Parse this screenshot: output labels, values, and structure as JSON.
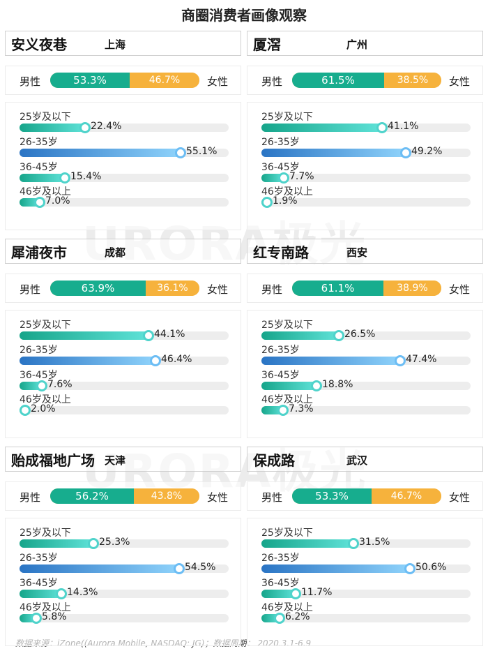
{
  "title": "商圈消费者画像观察",
  "watermark": "URORA极光",
  "gender_labels": {
    "male": "男性",
    "female": "女性"
  },
  "age_groups": [
    "25岁及以下",
    "26-35岁",
    "36-45岁",
    "46岁及以上"
  ],
  "footer": "数据来源：iZone((Aurora Mobile, NASDAQ: JG)；数据周期： 2020.3.1-6.9",
  "colors": {
    "male": "#17ad8e",
    "female": "#f6b23c",
    "age_teal": "#4fd3cb",
    "age_blue": "#4a9ae0"
  },
  "chart_data": [
    {
      "type": "bar",
      "mall": "安义夜巷",
      "city": "上海",
      "gender": {
        "male": "53.3%",
        "female": "46.7%",
        "male_value": 53.3,
        "female_value": 46.7
      },
      "ages": [
        {
          "label": "25岁及以下",
          "value": 22.4,
          "text": "22.4%"
        },
        {
          "label": "26-35岁",
          "value": 55.1,
          "text": "55.1%"
        },
        {
          "label": "36-45岁",
          "value": 15.4,
          "text": "15.4%"
        },
        {
          "label": "46岁及以上",
          "value": 7.0,
          "text": "7.0%"
        }
      ]
    },
    {
      "type": "bar",
      "mall": "厦滘",
      "city": "广州",
      "gender": {
        "male": "61.5%",
        "female": "38.5%",
        "male_value": 61.5,
        "female_value": 38.5
      },
      "ages": [
        {
          "label": "25岁及以下",
          "value": 41.1,
          "text": "41.1%"
        },
        {
          "label": "26-35岁",
          "value": 49.2,
          "text": "49.2%"
        },
        {
          "label": "36-45岁",
          "value": 7.7,
          "text": "7.7%"
        },
        {
          "label": "46岁及以上",
          "value": 1.9,
          "text": "1.9%"
        }
      ]
    },
    {
      "type": "bar",
      "mall": "犀浦夜市",
      "city": "成都",
      "gender": {
        "male": "63.9%",
        "female": "36.1%",
        "male_value": 63.9,
        "female_value": 36.1
      },
      "ages": [
        {
          "label": "25岁及以下",
          "value": 44.1,
          "text": "44.1%"
        },
        {
          "label": "26-35岁",
          "value": 46.4,
          "text": "46.4%"
        },
        {
          "label": "36-45岁",
          "value": 7.6,
          "text": "7.6%"
        },
        {
          "label": "46岁及以上",
          "value": 2.0,
          "text": "2.0%"
        }
      ]
    },
    {
      "type": "bar",
      "mall": "红专南路",
      "city": "西安",
      "gender": {
        "male": "61.1%",
        "female": "38.9%",
        "male_value": 61.1,
        "female_value": 38.9
      },
      "ages": [
        {
          "label": "25岁及以下",
          "value": 26.5,
          "text": "26.5%"
        },
        {
          "label": "26-35岁",
          "value": 47.4,
          "text": "47.4%"
        },
        {
          "label": "36-45岁",
          "value": 18.8,
          "text": "18.8%"
        },
        {
          "label": "46岁及以上",
          "value": 7.3,
          "text": "7.3%"
        }
      ]
    },
    {
      "type": "bar",
      "mall": "贻成福地广场",
      "city": "天津",
      "gender": {
        "male": "56.2%",
        "female": "43.8%",
        "male_value": 56.2,
        "female_value": 43.8
      },
      "ages": [
        {
          "label": "25岁及以下",
          "value": 25.3,
          "text": "25.3%"
        },
        {
          "label": "26-35岁",
          "value": 54.5,
          "text": "54.5%"
        },
        {
          "label": "36-45岁",
          "value": 14.3,
          "text": "14.3%"
        },
        {
          "label": "46岁及以上",
          "value": 5.8,
          "text": "5.8%"
        }
      ]
    },
    {
      "type": "bar",
      "mall": "保成路",
      "city": "武汉",
      "gender": {
        "male": "53.3%",
        "female": "46.7%",
        "male_value": 53.3,
        "female_value": 46.7
      },
      "ages": [
        {
          "label": "25岁及以下",
          "value": 31.5,
          "text": "31.5%"
        },
        {
          "label": "26-35岁",
          "value": 50.6,
          "text": "50.6%"
        },
        {
          "label": "36-45岁",
          "value": 11.7,
          "text": "11.7%"
        },
        {
          "label": "46岁及以上",
          "value": 6.2,
          "text": "6.2%"
        }
      ]
    }
  ]
}
